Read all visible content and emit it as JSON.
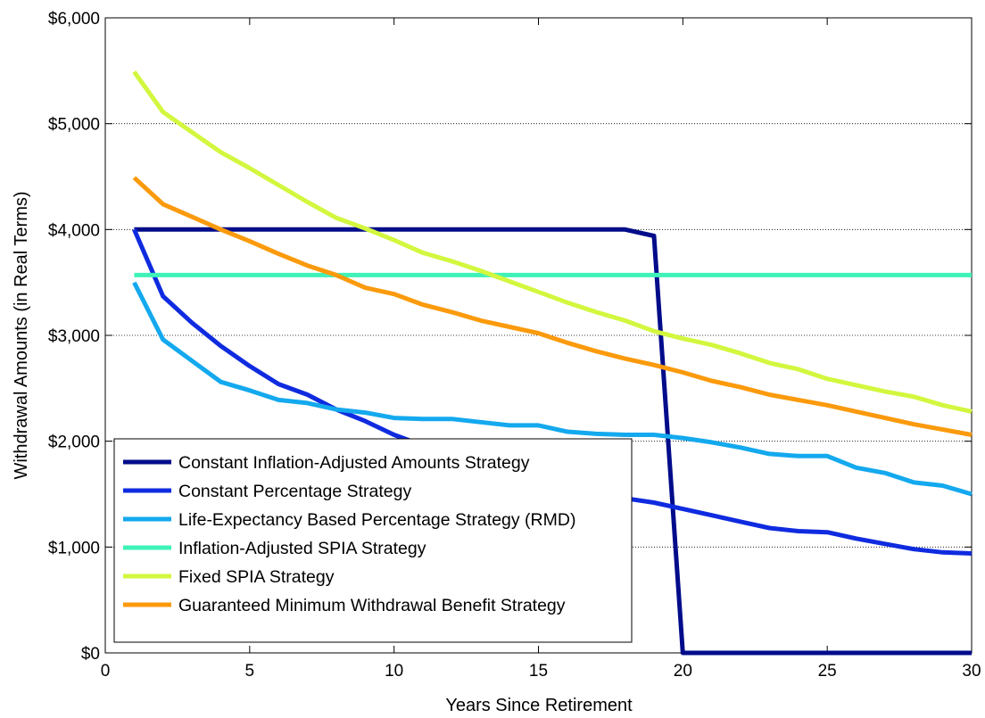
{
  "chart_data": {
    "type": "line",
    "title": "",
    "xlabel": "Years Since Retirement",
    "ylabel": "Withdrawal Amounts (in Real Terms)",
    "xlim": [
      0,
      30
    ],
    "ylim": [
      0,
      6000
    ],
    "x_ticks": [
      0,
      5,
      10,
      15,
      20,
      25,
      30
    ],
    "x_tick_labels": [
      "0",
      "5",
      "10",
      "15",
      "20",
      "25",
      "30"
    ],
    "y_ticks": [
      0,
      1000,
      2000,
      3000,
      4000,
      5000,
      6000
    ],
    "y_tick_labels": [
      "$0",
      "$1,000",
      "$2,000",
      "$3,000",
      "$4,000",
      "$5,000",
      "$6,000"
    ],
    "grid": "horizontal dotted",
    "legend_position": "bottom-left",
    "x": [
      1,
      2,
      3,
      4,
      5,
      6,
      7,
      8,
      9,
      10,
      11,
      12,
      13,
      14,
      15,
      16,
      17,
      18,
      19,
      20,
      21,
      22,
      23,
      24,
      25,
      26,
      27,
      28,
      29,
      30
    ],
    "series": [
      {
        "name": "Constant Inflation-Adjusted Amounts Strategy",
        "color": "#000c8a",
        "values": [
          4000,
          4000,
          4000,
          4000,
          4000,
          4000,
          4000,
          4000,
          4000,
          4000,
          4000,
          4000,
          4000,
          4000,
          4000,
          4000,
          4000,
          4000,
          3940,
          0,
          0,
          0,
          0,
          0,
          0,
          0,
          0,
          0,
          0,
          0
        ]
      },
      {
        "name": "Constant Percentage Strategy",
        "color": "#0f2be0",
        "values": [
          4000,
          3370,
          3120,
          2900,
          2710,
          2540,
          2440,
          2300,
          2190,
          2060,
          1960,
          1870,
          1770,
          1700,
          1640,
          1570,
          1510,
          1460,
          1420,
          1360,
          1300,
          1240,
          1180,
          1150,
          1140,
          1080,
          1030,
          980,
          950,
          940
        ]
      },
      {
        "name": "Life-Expectancy Based Percentage Strategy (RMD)",
        "color": "#14a9ee",
        "values": [
          3500,
          2960,
          2760,
          2560,
          2480,
          2390,
          2360,
          2300,
          2270,
          2220,
          2210,
          2210,
          2180,
          2150,
          2150,
          2090,
          2070,
          2060,
          2060,
          2030,
          1990,
          1940,
          1880,
          1860,
          1860,
          1750,
          1700,
          1610,
          1580,
          1500
        ]
      },
      {
        "name": "Inflation-Adjusted SPIA Strategy",
        "color": "#3ff2b8",
        "values": [
          3570,
          3570,
          3570,
          3570,
          3570,
          3570,
          3570,
          3570,
          3570,
          3570,
          3570,
          3570,
          3570,
          3570,
          3570,
          3570,
          3570,
          3570,
          3570,
          3570,
          3570,
          3570,
          3570,
          3570,
          3570,
          3570,
          3570,
          3570,
          3570,
          3570
        ]
      },
      {
        "name": "Fixed SPIA Strategy",
        "color": "#d2f73e",
        "values": [
          5490,
          5110,
          4920,
          4730,
          4580,
          4420,
          4260,
          4110,
          4010,
          3900,
          3780,
          3700,
          3610,
          3510,
          3410,
          3310,
          3220,
          3140,
          3040,
          2970,
          2910,
          2830,
          2740,
          2680,
          2590,
          2530,
          2470,
          2420,
          2340,
          2280
        ]
      },
      {
        "name": "Guaranteed Minimum Withdrawal Benefit Strategy",
        "color": "#fb9a0c",
        "values": [
          4490,
          4240,
          4120,
          4000,
          3890,
          3770,
          3660,
          3570,
          3450,
          3390,
          3290,
          3220,
          3140,
          3080,
          3020,
          2930,
          2850,
          2780,
          2720,
          2650,
          2570,
          2510,
          2440,
          2390,
          2340,
          2280,
          2220,
          2160,
          2110,
          2060
        ]
      }
    ]
  }
}
